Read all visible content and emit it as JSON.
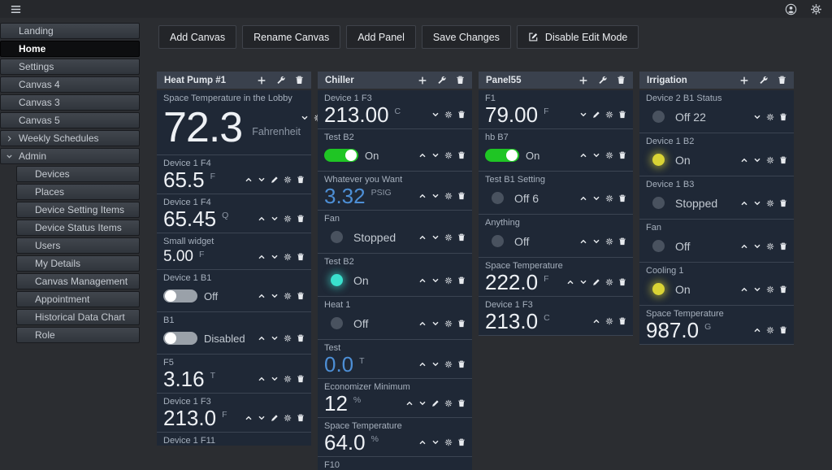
{
  "colors": {
    "background": "#2b2d31",
    "panel_header": "#3a414d",
    "widget_bg": "#1f2836",
    "value_blue": "#4d8fd6",
    "toggle_on_green": "#1fc524",
    "status_cyan": "#3ae0cd",
    "status_yellow": "#d9d335",
    "status_off_gray": "#49525f"
  },
  "topbar": {
    "icons": [
      "hamburger-icon",
      "user-icon",
      "gear-icon"
    ]
  },
  "sidebar": {
    "items": [
      {
        "label": "Landing",
        "active": false
      },
      {
        "label": "Home",
        "active": true
      },
      {
        "label": "Settings",
        "active": false
      },
      {
        "label": "Canvas 4",
        "active": false
      },
      {
        "label": "Canvas 3",
        "active": false
      },
      {
        "label": "Canvas 5",
        "active": false
      },
      {
        "label": "Weekly Schedules",
        "active": false,
        "chevron": "right"
      },
      {
        "label": "Admin",
        "active": false,
        "chevron": "down",
        "children": [
          "Devices",
          "Places",
          "Device Setting Items",
          "Device Status Items",
          "Users",
          "My Details",
          "Canvas Management",
          "Appointment",
          "Historical Data Chart",
          "Role"
        ]
      }
    ]
  },
  "toolbar": {
    "buttons": [
      {
        "label": "Add Canvas"
      },
      {
        "label": "Rename Canvas"
      },
      {
        "label": "Add Panel"
      },
      {
        "label": "Save Changes"
      },
      {
        "label": "Disable Edit Mode",
        "icon": "edit"
      }
    ]
  },
  "panels": [
    {
      "title": "Heat Pump #1",
      "header_icons": [
        "plus-icon",
        "wrench-icon",
        "trash-icon"
      ],
      "widgets": [
        {
          "kind": "value",
          "size": "xl",
          "title": "Space Temperature in the Lobby",
          "value": "72.3",
          "unit": "Fahrenheit",
          "icons": [
            "chevron-down",
            "gear",
            "trash"
          ]
        },
        {
          "kind": "value",
          "title": "Device 1 F4",
          "value": "65.5",
          "unit": "F",
          "icons": [
            "chevron-up",
            "chevron-down",
            "pencil",
            "gear",
            "trash"
          ]
        },
        {
          "kind": "value",
          "title": "Device 1 F4",
          "value": "65.45",
          "unit": "Q",
          "icons": [
            "chevron-up",
            "chevron-down",
            "gear",
            "trash"
          ]
        },
        {
          "kind": "value",
          "size": "sm",
          "title": "Small widget",
          "value": "5.00",
          "unit": "F",
          "icons": [
            "chevron-up",
            "chevron-down",
            "gear",
            "trash"
          ]
        },
        {
          "kind": "toggle",
          "title": "Device 1 B1",
          "state": "Off",
          "on": false,
          "icons": [
            "chevron-up",
            "chevron-down",
            "gear",
            "trash"
          ]
        },
        {
          "kind": "toggle",
          "title": "B1",
          "state": "Disabled",
          "on": false,
          "icons": [
            "chevron-up",
            "chevron-down",
            "gear",
            "trash"
          ]
        },
        {
          "kind": "value",
          "title": "F5",
          "value": "3.16",
          "unit": "T",
          "icons": [
            "chevron-up",
            "chevron-down",
            "gear",
            "trash"
          ]
        },
        {
          "kind": "value",
          "title": "Device 1 F3",
          "value": "213.0",
          "unit": "F",
          "icons": [
            "chevron-up",
            "chevron-down",
            "pencil",
            "gear",
            "trash"
          ]
        },
        {
          "kind": "clipped",
          "title": "Device 1 F11"
        }
      ]
    },
    {
      "title": "Chiller",
      "header_icons": [
        "plus-icon",
        "wrench-icon",
        "trash-icon"
      ],
      "widgets": [
        {
          "kind": "value",
          "title": "Device 1 F3",
          "value": "213.00",
          "unit": "C",
          "icons": [
            "chevron-down",
            "gear",
            "trash"
          ]
        },
        {
          "kind": "toggle",
          "title": "Test B2",
          "state": "On",
          "on": true,
          "icons": [
            "chevron-up",
            "chevron-down",
            "gear",
            "trash"
          ]
        },
        {
          "kind": "value",
          "color": "blue",
          "title": "Whatever you Want",
          "value": "3.32",
          "unit": "PSIG",
          "icons": [
            "chevron-up",
            "chevron-down",
            "gear",
            "trash"
          ]
        },
        {
          "kind": "status",
          "title": "Fan",
          "state": "Stopped",
          "dot": "off",
          "icons": [
            "chevron-up",
            "chevron-down",
            "gear",
            "trash"
          ]
        },
        {
          "kind": "status",
          "title": "Test B2",
          "state": "On",
          "dot": "cyan",
          "icons": [
            "chevron-up",
            "chevron-down",
            "gear",
            "trash"
          ]
        },
        {
          "kind": "status",
          "title": "Heat 1",
          "state": "Off",
          "dot": "off",
          "icons": [
            "chevron-up",
            "chevron-down",
            "gear",
            "trash"
          ]
        },
        {
          "kind": "value",
          "color": "blue",
          "title": "Test",
          "value": "0.0",
          "unit": "T",
          "icons": [
            "chevron-up",
            "chevron-down",
            "gear",
            "trash"
          ]
        },
        {
          "kind": "value",
          "title": "Economizer Minimum",
          "value": "12",
          "unit": "%",
          "icons": [
            "chevron-up",
            "chevron-down",
            "pencil",
            "gear",
            "trash"
          ]
        },
        {
          "kind": "value",
          "title": "Space Temperature",
          "value": "64.0",
          "unit": "%",
          "icons": [
            "chevron-up",
            "chevron-down",
            "gear",
            "trash"
          ]
        },
        {
          "kind": "clipped",
          "title": "F10"
        }
      ]
    },
    {
      "title": "Panel55",
      "header_icons": [
        "plus-icon",
        "wrench-icon",
        "trash-icon"
      ],
      "widgets": [
        {
          "kind": "value",
          "title": "F1",
          "value": "79.00",
          "unit": "F",
          "icons": [
            "chevron-down",
            "pencil",
            "gear",
            "trash"
          ]
        },
        {
          "kind": "toggle",
          "title": "hb B7",
          "state": "On",
          "on": true,
          "icons": [
            "chevron-up",
            "chevron-down",
            "gear",
            "trash"
          ]
        },
        {
          "kind": "status",
          "title": "Test B1 Setting",
          "state": "Off 6",
          "dot": "off",
          "icons": [
            "chevron-up",
            "chevron-down",
            "gear",
            "trash"
          ]
        },
        {
          "kind": "status",
          "title": "Anything",
          "state": "Off",
          "dot": "off",
          "icons": [
            "chevron-up",
            "chevron-down",
            "gear",
            "trash"
          ]
        },
        {
          "kind": "value",
          "title": "Space Temperature",
          "value": "222.0",
          "unit": "F",
          "icons": [
            "chevron-up",
            "chevron-down",
            "pencil",
            "gear",
            "trash"
          ]
        },
        {
          "kind": "value",
          "title": "Device 1 F3",
          "value": "213.0",
          "unit": "C",
          "icons": [
            "chevron-up",
            "gear",
            "trash"
          ]
        }
      ]
    },
    {
      "title": "Irrigation",
      "header_icons": [
        "plus-icon",
        "wrench-icon",
        "trash-icon"
      ],
      "widgets": [
        {
          "kind": "status",
          "title": "Device 2 B1 Status",
          "state": "Off 22",
          "dot": "off",
          "icons": [
            "chevron-down",
            "gear",
            "trash"
          ]
        },
        {
          "kind": "status",
          "title": "Device 1 B2",
          "state": "On",
          "dot": "yellow",
          "icons": [
            "chevron-up",
            "chevron-down",
            "gear",
            "trash"
          ]
        },
        {
          "kind": "status",
          "title": "Device 1 B3",
          "state": "Stopped",
          "dot": "off",
          "icons": [
            "chevron-up",
            "chevron-down",
            "gear",
            "trash"
          ]
        },
        {
          "kind": "status",
          "title": "Fan",
          "state": "Off",
          "dot": "off",
          "icons": [
            "chevron-up",
            "chevron-down",
            "gear",
            "trash"
          ]
        },
        {
          "kind": "status",
          "title": "Cooling 1",
          "state": "On",
          "dot": "yellow",
          "icons": [
            "chevron-up",
            "chevron-down",
            "gear",
            "trash"
          ]
        },
        {
          "kind": "value",
          "title": "Space Temperature",
          "value": "987.0",
          "unit": "G",
          "icons": [
            "chevron-up",
            "gear",
            "trash"
          ]
        }
      ]
    }
  ]
}
